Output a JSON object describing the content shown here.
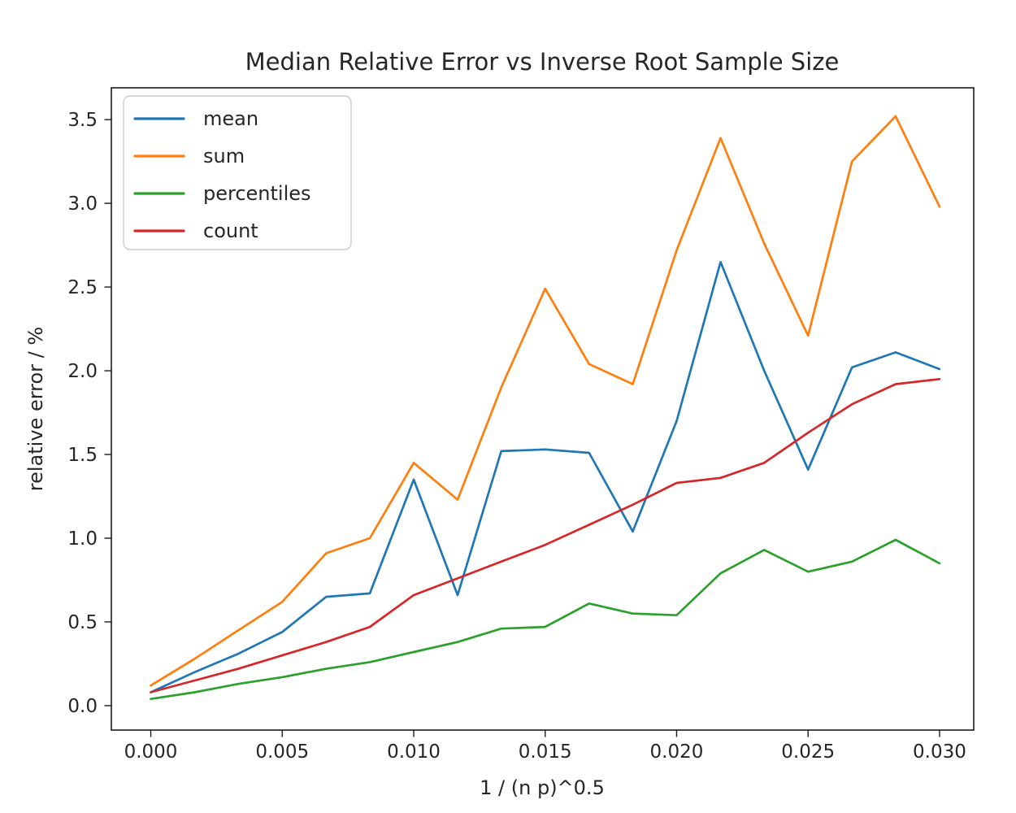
{
  "figure": {
    "title": "Median Relative Error vs Inverse Root Sample Size",
    "xlabel": "1 / (n p)^0.5",
    "ylabel": "relative error / %"
  },
  "chart_data": {
    "type": "line",
    "title": "Median Relative Error vs Inverse Root Sample Size",
    "xlabel": "1 / (n p)^0.5",
    "ylabel": "relative error / %",
    "grid": false,
    "legend": {
      "position": "upper-left",
      "entries": [
        "mean",
        "sum",
        "percentiles",
        "count"
      ]
    },
    "xlim": [
      -0.0015,
      0.0313
    ],
    "ylim": [
      -0.146,
      3.69
    ],
    "xticks": {
      "values": [
        0,
        0.005,
        0.01,
        0.015,
        0.02,
        0.025,
        0.03
      ],
      "labels": [
        "0.000",
        "0.005",
        "0.010",
        "0.015",
        "0.020",
        "0.025",
        "0.030"
      ]
    },
    "yticks": {
      "values": [
        0,
        0.5,
        1.0,
        1.5,
        2.0,
        2.5,
        3.0,
        3.5
      ],
      "labels": [
        "0.0",
        "0.5",
        "1.0",
        "1.5",
        "2.0",
        "2.5",
        "3.0",
        "3.5"
      ]
    },
    "x": [
      0.0,
      0.00167,
      0.00333,
      0.005,
      0.00667,
      0.00833,
      0.01,
      0.01167,
      0.01333,
      0.015,
      0.01667,
      0.01833,
      0.02,
      0.02167,
      0.02333,
      0.025,
      0.02667,
      0.02833,
      0.03
    ],
    "series": [
      {
        "name": "mean",
        "color": "#1f77b4",
        "values": [
          0.08,
          0.2,
          0.31,
          0.44,
          0.65,
          0.67,
          1.35,
          0.66,
          1.52,
          1.53,
          1.51,
          1.04,
          1.7,
          2.65,
          2.0,
          1.41,
          2.02,
          2.11,
          2.01
        ]
      },
      {
        "name": "sum",
        "color": "#ff7f0e",
        "values": [
          0.12,
          0.28,
          0.45,
          0.62,
          0.91,
          1.0,
          1.45,
          1.23,
          1.9,
          2.49,
          2.04,
          1.92,
          2.72,
          3.39,
          2.76,
          2.21,
          3.25,
          3.52,
          2.98
        ]
      },
      {
        "name": "percentiles",
        "color": "#2ca02c",
        "values": [
          0.04,
          0.08,
          0.13,
          0.17,
          0.22,
          0.26,
          0.32,
          0.38,
          0.46,
          0.47,
          0.61,
          0.55,
          0.54,
          0.79,
          0.93,
          0.8,
          0.86,
          0.99,
          0.85
        ]
      },
      {
        "name": "count",
        "color": "#d62728",
        "values": [
          0.08,
          0.15,
          0.22,
          0.3,
          0.38,
          0.47,
          0.66,
          0.76,
          0.86,
          0.96,
          1.08,
          1.2,
          1.33,
          1.36,
          1.45,
          1.63,
          1.8,
          1.92,
          1.95
        ]
      }
    ]
  }
}
